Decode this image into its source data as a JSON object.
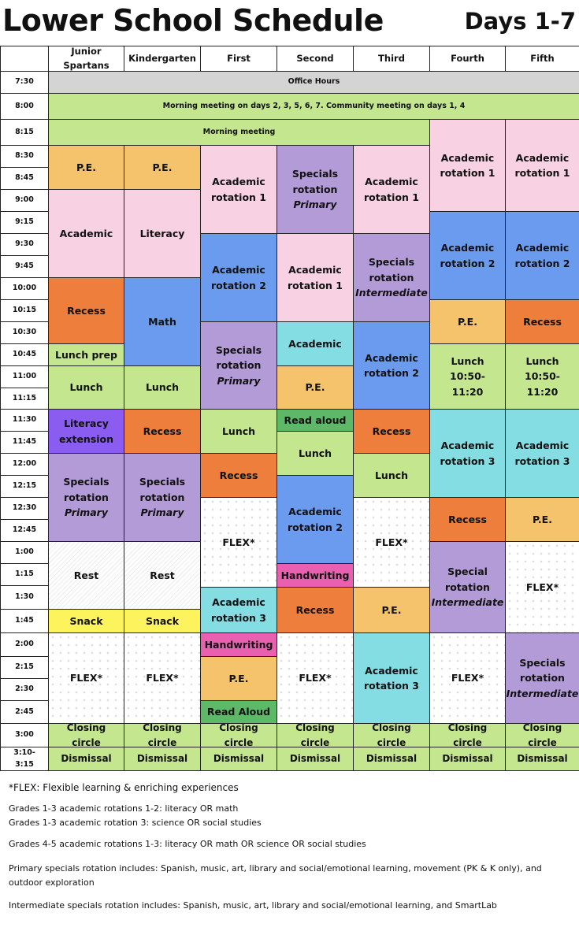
{
  "header": {
    "title": "Lower School Schedule",
    "days": "Days 1-7"
  },
  "table": {
    "columns": [
      "Junior Spartans",
      "Kindergarten",
      "First",
      "Second",
      "Third",
      "Fourth",
      "Fifth"
    ],
    "times": [
      "7:30",
      "8:00",
      "8:15",
      "8:30",
      "8:45",
      "9:00",
      "9:15",
      "9:30",
      "9:45",
      "10:00",
      "10:15",
      "10:30",
      "10:45",
      "11:00",
      "11:15",
      "11:30",
      "11:45",
      "12:00",
      "12:15",
      "12:30",
      "12:45",
      "1:00",
      "1:15",
      "1:30",
      "1:45",
      "2:00",
      "2:15",
      "2:30",
      "2:45",
      "3:00",
      "3:10-3:15"
    ],
    "spanning": [
      {
        "text": "Office Hours"
      },
      {
        "text": "Morning meeting on days 2, 3, 5, 6, 7. Community meeting on days 1, 4"
      },
      {
        "text": "Morning meeting"
      }
    ],
    "grades": [
      {
        "cells": [
          {
            "text": "P.E."
          },
          {
            "text": "Academic"
          },
          {
            "text": "Recess"
          },
          {
            "text": "Lunch prep"
          },
          {
            "text": "Lunch"
          },
          {
            "text": "Literacy extension"
          },
          {
            "text": "Specials rotation",
            "italic": "Primary"
          },
          {
            "text": "Rest"
          },
          {
            "text": "Snack"
          },
          {
            "text": "FLEX*"
          },
          {
            "text": "Closing circle"
          },
          {
            "text": "Dismissal"
          }
        ]
      },
      {
        "cells": [
          {
            "text": "P.E."
          },
          {
            "text": "Literacy"
          },
          {
            "text": "Math"
          },
          {
            "text": "Lunch"
          },
          {
            "text": "Recess"
          },
          {
            "text": "Specials rotation",
            "italic": "Primary"
          },
          {
            "text": "Rest"
          },
          {
            "text": "Snack"
          },
          {
            "text": "FLEX*"
          },
          {
            "text": "Closing circle"
          },
          {
            "text": "Dismissal"
          }
        ]
      },
      {
        "cells": [
          {
            "text": "Academic rotation 1"
          },
          {
            "text": "Academic rotation 2"
          },
          {
            "text": "Specials rotation",
            "italic": "Primary"
          },
          {
            "text": "Lunch"
          },
          {
            "text": "Recess"
          },
          {
            "text": "FLEX*"
          },
          {
            "text": "Academic rotation 3"
          },
          {
            "text": "Handwriting"
          },
          {
            "text": "P.E."
          },
          {
            "text": "Read Aloud"
          },
          {
            "text": "Closing circle"
          },
          {
            "text": "Dismissal"
          }
        ]
      },
      {
        "cells": [
          {
            "text": "Specials rotation",
            "italic": "Primary"
          },
          {
            "text": "Academic rotation 1"
          },
          {
            "text": "Academic"
          },
          {
            "text": "P.E."
          },
          {
            "text": "Read aloud"
          },
          {
            "text": "Lunch"
          },
          {
            "text": "Academic rotation 2"
          },
          {
            "text": "Handwriting"
          },
          {
            "text": "Recess"
          },
          {
            "text": "FLEX*"
          },
          {
            "text": "Closing circle"
          },
          {
            "text": "Dismissal"
          }
        ]
      },
      {
        "cells": [
          {
            "text": "Academic rotation 1"
          },
          {
            "text": "Specials rotation",
            "italic": "Intermediate"
          },
          {
            "text": "Academic rotation 2"
          },
          {
            "text": "Recess"
          },
          {
            "text": "Lunch"
          },
          {
            "text": "FLEX*"
          },
          {
            "text": "P.E."
          },
          {
            "text": "Academic rotation 3"
          },
          {
            "text": "Closing circle"
          },
          {
            "text": "Dismissal"
          }
        ]
      },
      {
        "cells": [
          {
            "text": "Academic rotation 1"
          },
          {
            "text": "Academic rotation 2"
          },
          {
            "text": "P.E."
          },
          {
            "text": "Lunch 10:50-11:20"
          },
          {
            "text": "Academic rotation 3"
          },
          {
            "text": "Recess"
          },
          {
            "text": "Special rotation",
            "italic": "Intermediate"
          },
          {
            "text": "FLEX*"
          },
          {
            "text": "Closing circle"
          },
          {
            "text": "Dismissal"
          }
        ]
      },
      {
        "cells": [
          {
            "text": "Academic rotation 1"
          },
          {
            "text": "Academic rotation 2"
          },
          {
            "text": "Recess"
          },
          {
            "text": "Lunch 10:50-11:20"
          },
          {
            "text": "Academic rotation 3"
          },
          {
            "text": "P.E."
          },
          {
            "text": "FLEX*"
          },
          {
            "text": "Specials rotation",
            "italic": "Intermediate"
          },
          {
            "text": "Closing circle"
          },
          {
            "text": "Dismissal"
          }
        ]
      }
    ]
  },
  "notes": [
    "*FLEX: Flexible learning & enriching experiences",
    "Grades 1-3 academic rotations 1-2: literacy OR math",
    "Grades 1-3 academic rotation 3: science OR social studies",
    "Grades 4-5 academic rotations 1-3:  literacy OR math OR science OR social studies",
    "Primary specials rotation includes: Spanish, music, art, library and social/emotional learning, movement (PK & K only), and outdoor exploration",
    "Intermediate specials rotation includes: Spanish, music, art, library and social/emotional learning, and SmartLab"
  ]
}
